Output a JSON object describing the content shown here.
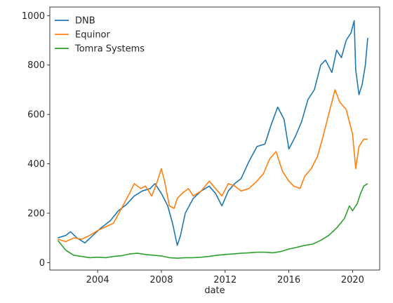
{
  "chart_data": {
    "type": "line",
    "title": "",
    "xlabel": "date",
    "ylabel": "",
    "xlim": [
      2001.0,
      2021.7
    ],
    "ylim": [
      -30,
      1035
    ],
    "x_ticks": [
      2004,
      2008,
      2012,
      2016,
      2020
    ],
    "x_tick_labels": [
      "2004",
      "2008",
      "2012",
      "2016",
      "2020"
    ],
    "y_ticks": [
      0,
      200,
      400,
      600,
      800,
      1000
    ],
    "y_tick_labels": [
      "0",
      "200",
      "400",
      "600",
      "800",
      "1000"
    ],
    "grid": false,
    "legend_position": "top-left",
    "series": [
      {
        "name": "DNB",
        "color": "#1f77b4",
        "x": [
          2001.5,
          2002.0,
          2002.3,
          2002.7,
          2003.2,
          2003.7,
          2004.2,
          2004.8,
          2005.3,
          2005.8,
          2006.3,
          2006.8,
          2007.3,
          2007.6,
          2008.0,
          2008.4,
          2008.7,
          2009.0,
          2009.2,
          2009.5,
          2010.0,
          2010.5,
          2011.0,
          2011.4,
          2011.8,
          2012.2,
          2012.6,
          2013.0,
          2013.5,
          2014.0,
          2014.5,
          2014.9,
          2015.3,
          2015.7,
          2016.0,
          2016.4,
          2016.8,
          2017.2,
          2017.6,
          2018.0,
          2018.3,
          2018.7,
          2019.0,
          2019.3,
          2019.6,
          2019.9,
          2020.1,
          2020.2,
          2020.4,
          2020.6,
          2020.8,
          2020.95
        ],
        "values": [
          100,
          110,
          125,
          100,
          80,
          110,
          140,
          170,
          210,
          235,
          270,
          290,
          300,
          320,
          280,
          230,
          160,
          70,
          110,
          200,
          260,
          290,
          310,
          280,
          230,
          290,
          320,
          340,
          410,
          470,
          480,
          560,
          630,
          580,
          460,
          510,
          570,
          660,
          700,
          800,
          820,
          770,
          860,
          830,
          900,
          930,
          980,
          780,
          680,
          720,
          800,
          910
        ]
      },
      {
        "name": "Equinor",
        "color": "#ff7f0e",
        "x": [
          2001.5,
          2002.0,
          2002.5,
          2003.0,
          2003.5,
          2004.0,
          2004.5,
          2005.0,
          2005.5,
          2006.0,
          2006.3,
          2006.7,
          2007.0,
          2007.4,
          2007.7,
          2008.0,
          2008.2,
          2008.5,
          2008.8,
          2009.0,
          2009.3,
          2009.7,
          2010.0,
          2010.5,
          2011.0,
          2011.4,
          2011.8,
          2012.2,
          2012.6,
          2013.0,
          2013.5,
          2014.0,
          2014.4,
          2014.8,
          2015.2,
          2015.6,
          2016.0,
          2016.3,
          2016.7,
          2017.0,
          2017.4,
          2017.8,
          2018.1,
          2018.5,
          2018.9,
          2019.2,
          2019.6,
          2020.0,
          2020.2,
          2020.4,
          2020.7,
          2020.95
        ],
        "values": [
          95,
          85,
          100,
          95,
          110,
          130,
          145,
          160,
          220,
          280,
          320,
          300,
          310,
          270,
          320,
          380,
          330,
          230,
          220,
          260,
          280,
          300,
          270,
          290,
          330,
          300,
          270,
          320,
          310,
          290,
          300,
          330,
          360,
          420,
          450,
          370,
          330,
          310,
          300,
          350,
          380,
          430,
          500,
          600,
          700,
          650,
          620,
          520,
          380,
          470,
          500,
          500
        ]
      },
      {
        "name": "Tomra Systems",
        "color": "#2ca02c",
        "x": [
          2001.5,
          2002.0,
          2002.5,
          2003.0,
          2003.5,
          2004.0,
          2004.5,
          2005.0,
          2005.5,
          2006.0,
          2006.5,
          2007.0,
          2007.5,
          2008.0,
          2008.5,
          2009.0,
          2009.5,
          2010.0,
          2010.5,
          2011.0,
          2011.5,
          2012.0,
          2012.5,
          2013.0,
          2013.5,
          2014.0,
          2014.5,
          2015.0,
          2015.5,
          2016.0,
          2016.5,
          2017.0,
          2017.5,
          2018.0,
          2018.5,
          2019.0,
          2019.5,
          2019.8,
          2020.0,
          2020.3,
          2020.5,
          2020.7,
          2020.95
        ],
        "values": [
          90,
          50,
          30,
          25,
          20,
          22,
          20,
          25,
          28,
          35,
          38,
          33,
          30,
          27,
          20,
          18,
          20,
          20,
          22,
          25,
          30,
          33,
          35,
          38,
          40,
          42,
          42,
          40,
          45,
          55,
          62,
          70,
          75,
          90,
          110,
          140,
          180,
          230,
          210,
          240,
          280,
          310,
          320
        ]
      }
    ]
  }
}
